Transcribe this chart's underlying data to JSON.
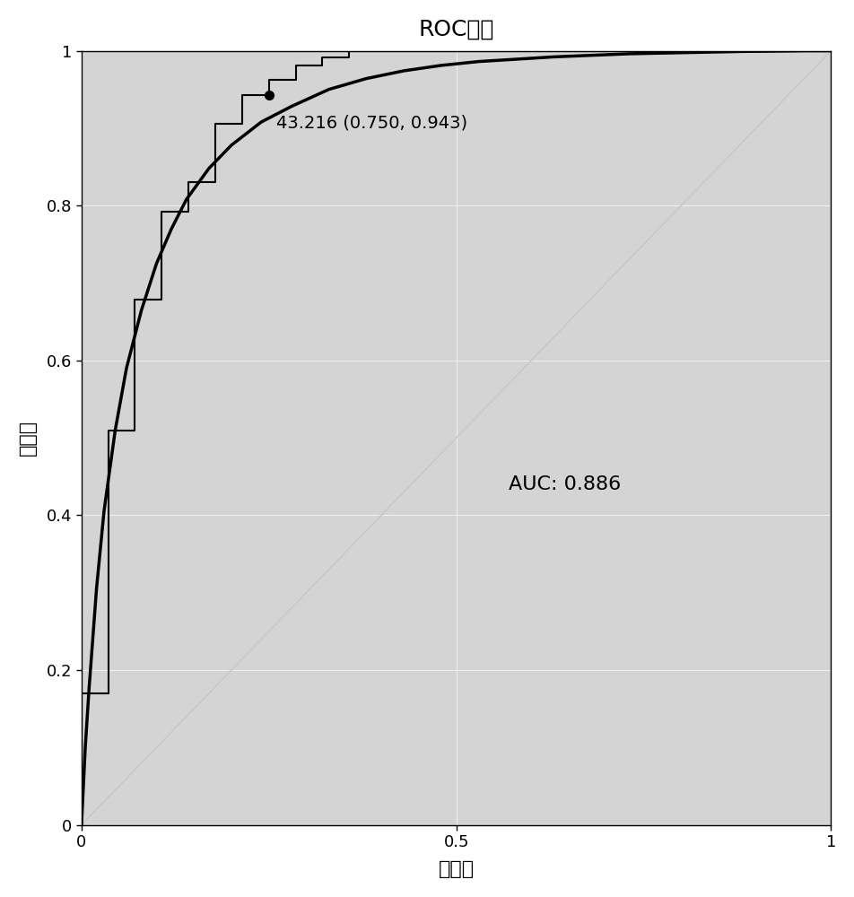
{
  "title": "ROC曲线",
  "xlabel": "特异性",
  "ylabel": "敏感性",
  "auc_text": "AUC: 0.886",
  "optimal_label": "43.216 (0.750, 0.943)",
  "optimal_point": [
    0.25,
    0.943
  ],
  "background_color": "#d4d4d4",
  "smooth_curve_color": "#000000",
  "step_curve_color": "#000000",
  "diagonal_color": "#c8c8c8",
  "smooth_roc_x": [
    0.0,
    0.005,
    0.01,
    0.02,
    0.03,
    0.045,
    0.06,
    0.08,
    0.1,
    0.12,
    0.14,
    0.17,
    0.2,
    0.24,
    0.28,
    0.33,
    0.38,
    0.43,
    0.48,
    0.53,
    0.58,
    0.63,
    0.68,
    0.73,
    0.78,
    0.83,
    0.88,
    0.93,
    0.97,
    1.0
  ],
  "smooth_roc_y": [
    0.0,
    0.1,
    0.175,
    0.305,
    0.405,
    0.51,
    0.59,
    0.665,
    0.725,
    0.77,
    0.808,
    0.848,
    0.878,
    0.908,
    0.928,
    0.95,
    0.964,
    0.974,
    0.981,
    0.986,
    0.989,
    0.992,
    0.994,
    0.996,
    0.997,
    0.998,
    0.999,
    0.9995,
    1.0,
    1.0
  ],
  "step_roc_x": [
    0.0,
    0.0,
    0.036,
    0.036,
    0.071,
    0.071,
    0.107,
    0.107,
    0.143,
    0.143,
    0.179,
    0.179,
    0.214,
    0.214,
    0.25,
    0.25,
    0.286,
    0.286,
    0.321,
    0.321,
    0.357,
    0.357,
    1.0
  ],
  "step_roc_y": [
    0.0,
    0.17,
    0.17,
    0.509,
    0.509,
    0.679,
    0.679,
    0.792,
    0.792,
    0.83,
    0.83,
    0.906,
    0.906,
    0.943,
    0.943,
    0.962,
    0.962,
    0.981,
    0.981,
    0.991,
    0.991,
    1.0,
    1.0
  ],
  "xlim": [
    0.0,
    1.0
  ],
  "ylim": [
    0.0,
    1.0
  ],
  "xticks": [
    0.0,
    0.5,
    1.0
  ],
  "yticks": [
    0.0,
    0.2,
    0.4,
    0.6,
    0.8,
    1.0
  ],
  "xtick_labels": [
    "0",
    "0.5",
    "1"
  ],
  "ytick_labels": [
    "0",
    "0.2",
    "0.4",
    "0.6",
    "0.8",
    "1"
  ],
  "title_fontsize": 18,
  "label_fontsize": 16,
  "tick_fontsize": 13,
  "annotation_fontsize": 14,
  "auc_fontsize": 16,
  "fig_width": 9.53,
  "fig_height": 10.0
}
